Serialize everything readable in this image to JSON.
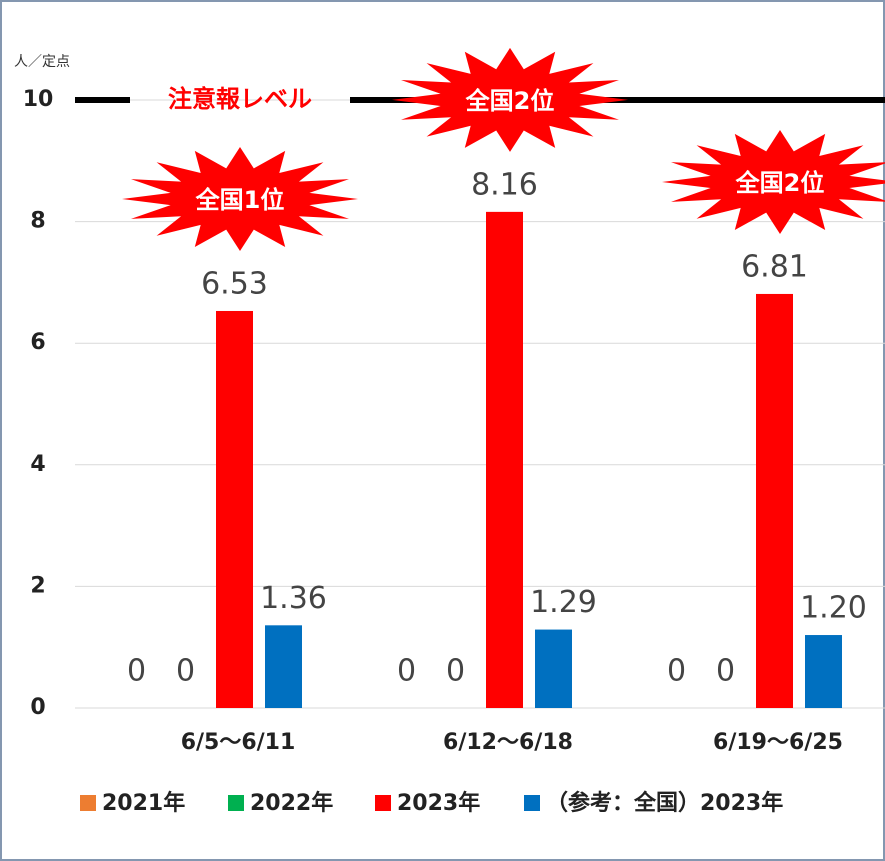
{
  "chart_data": {
    "type": "bar",
    "y_unit": "人／定点",
    "categories": [
      "6/5～6/11",
      "6/12～6/18",
      "6/19～6/25"
    ],
    "series": [
      {
        "name": "2021年",
        "color": "#ed7d31",
        "values": [
          0,
          0,
          0
        ]
      },
      {
        "name": "2022年",
        "color": "#00b050",
        "values": [
          0,
          0,
          0
        ]
      },
      {
        "name": "2023年",
        "color": "#ff0000",
        "values": [
          6.53,
          8.16,
          6.81
        ]
      },
      {
        "name": "（参考：全国）2023年",
        "color": "#0070c0",
        "values": [
          1.36,
          1.29,
          1.2
        ],
        "value_labels": [
          "1.36",
          "1.29",
          "1.20"
        ]
      }
    ],
    "ylim": [
      0,
      10
    ],
    "yticks": [
      0,
      2,
      4,
      6,
      8,
      10
    ],
    "grid": true,
    "threshold": {
      "value": 10,
      "label": "注意報レベル"
    },
    "rank_labels": [
      "全国1位",
      "全国2位",
      "全国2位"
    ],
    "legend": "bottom"
  }
}
